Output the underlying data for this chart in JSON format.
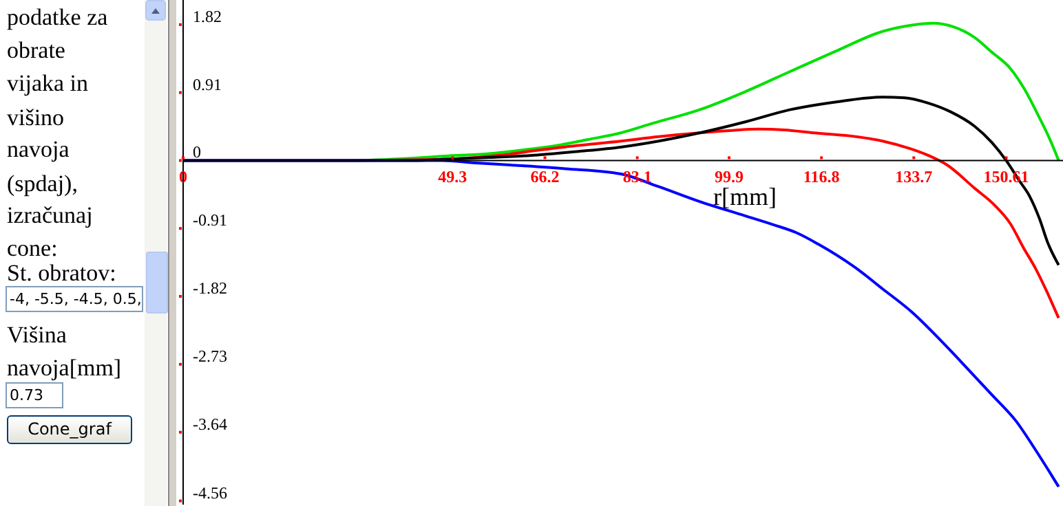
{
  "chart_data": {
    "type": "line",
    "xlabel": "r[mm]",
    "annotations": [
      "podatke za",
      "obrate",
      "vijaka in",
      "višino",
      "navoja",
      "(spdaj),",
      "izračunaj",
      "cone:",
      "St. obratov:",
      "-4, -5.5, -4.5, 0.5,",
      "Višina",
      "navoja[mm]",
      "0.73",
      "Cone_graf"
    ],
    "series": [
      {
        "color": "#00e000",
        "x": [
          0,
          30,
          41.6,
          48,
          55.7,
          62,
          68.3,
          74,
          80.1,
          86,
          94.5,
          102.8,
          111,
          119.6,
          128,
          133,
          137.3,
          141,
          144.8,
          148,
          151.4,
          154,
          156.5,
          158.5,
          160.2
        ],
        "values": [
          0,
          0,
          0.03,
          0.06,
          0.09,
          0.14,
          0.2,
          0.28,
          0.37,
          0.5,
          0.68,
          0.92,
          1.19,
          1.47,
          1.73,
          1.81,
          1.84,
          1.79,
          1.65,
          1.45,
          1.23,
          0.95,
          0.6,
          0.3,
          0
        ]
      },
      {
        "color": "#ff0000",
        "x": [
          0,
          30,
          44,
          51.6,
          58,
          64.2,
          72,
          80.1,
          87,
          94.5,
          100,
          105.3,
          110,
          115.4,
          122,
          128,
          133,
          136.3,
          139.8,
          144.8,
          148.5,
          151.4,
          153.7,
          156,
          158,
          160.2
        ],
        "values": [
          0,
          0,
          0.01,
          0.03,
          0.07,
          0.13,
          0.2,
          0.26,
          0.32,
          0.37,
          0.4,
          0.42,
          0.41,
          0.37,
          0.33,
          0.26,
          0.16,
          0.07,
          -0.06,
          -0.37,
          -0.6,
          -0.85,
          -1.16,
          -1.45,
          -1.75,
          -2.11
        ]
      },
      {
        "color": "#000000",
        "x": [
          0,
          30,
          42,
          49,
          56,
          64.2,
          72,
          80.1,
          87,
          94.5,
          103,
          111,
          120,
          128,
          132,
          136.3,
          140.5,
          144.8,
          148,
          150.6,
          153,
          154.9,
          156.7,
          158.2,
          160.2
        ],
        "values": [
          0,
          0,
          0,
          0.02,
          0.04,
          0.07,
          0.12,
          0.18,
          0.26,
          0.37,
          0.52,
          0.68,
          0.79,
          0.85,
          0.84,
          0.77,
          0.65,
          0.46,
          0.24,
          0,
          -0.27,
          -0.48,
          -0.78,
          -1.1,
          -1.4
        ]
      },
      {
        "color": "#0000ff",
        "x": [
          0,
          30,
          47.4,
          53,
          59.9,
          70,
          80.1,
          87,
          94.5,
          102.8,
          108,
          112.3,
          116.2,
          122.9,
          128,
          133.5,
          138.5,
          143.8,
          148,
          152.4,
          156,
          160.2
        ],
        "values": [
          0,
          0,
          0,
          -0.03,
          -0.06,
          -0.11,
          -0.18,
          -0.35,
          -0.55,
          -0.74,
          -0.86,
          -0.97,
          -1.12,
          -1.43,
          -1.72,
          -2.04,
          -2.4,
          -2.81,
          -3.14,
          -3.49,
          -3.88,
          -4.37
        ]
      }
    ],
    "xlim": [
      0,
      161
    ],
    "xticks": [
      0,
      49.3,
      66.2,
      83.1,
      99.9,
      116.8,
      133.7,
      150.61
    ],
    "ylim": [
      -4.61,
      2.15
    ],
    "yticks": [
      1.82,
      0.91,
      0,
      -0.91,
      -1.82,
      -2.73,
      -3.64,
      -4.56
    ],
    "marker": "none",
    "line_style": "solid"
  }
}
